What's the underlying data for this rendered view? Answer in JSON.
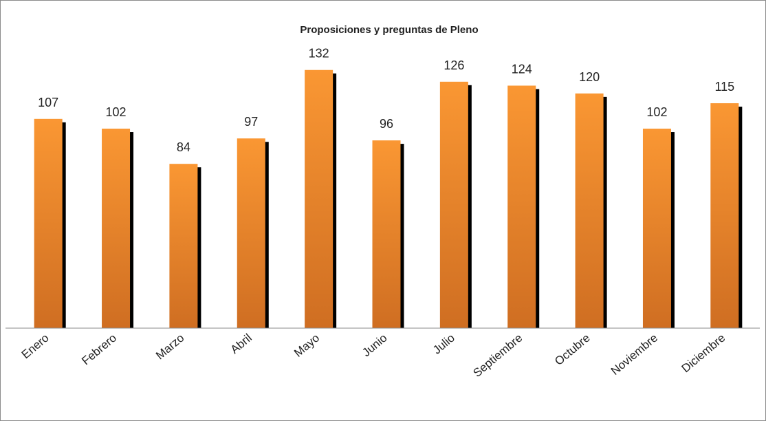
{
  "chart_data": {
    "type": "bar",
    "title": "Proposiciones y preguntas de Pleno",
    "categories": [
      "Enero",
      "Febrero",
      "Marzo",
      "Abril",
      "Mayo",
      "Junio",
      "Julio",
      "Septiembre",
      "Octubre",
      "Noviembre",
      "Diciembre"
    ],
    "values": [
      107,
      102,
      84,
      97,
      132,
      96,
      126,
      124,
      120,
      102,
      115
    ],
    "color": "#f7962f",
    "ylim": [
      0,
      140
    ]
  }
}
